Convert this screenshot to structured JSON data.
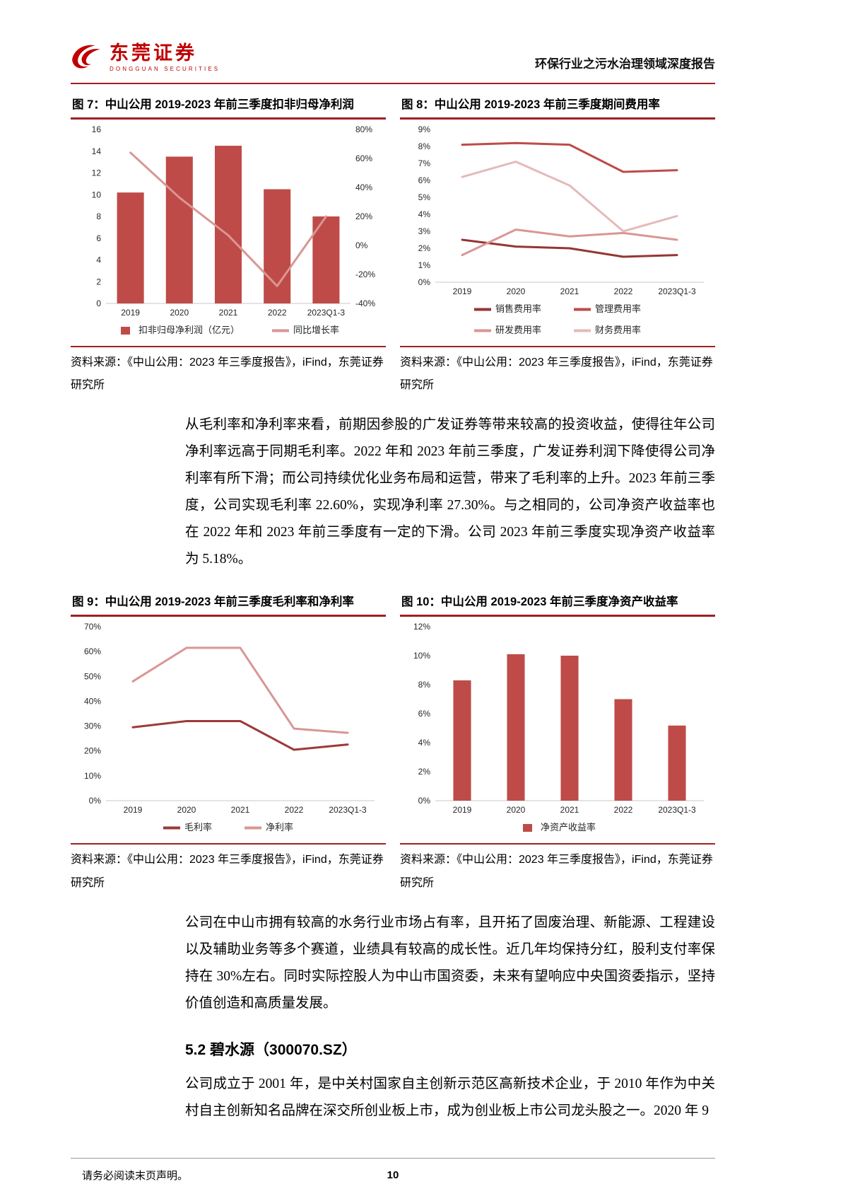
{
  "header": {
    "logo_title": "东莞证券",
    "logo_subtitle": "DONGGUAN SECURITIES",
    "report_title": "环保行业之污水治理领域深度报告"
  },
  "colors": {
    "brand_red": "#C00000",
    "rule_red": "#9E2123",
    "bar_red": "#BE4B48",
    "line_dark_red": "#943634",
    "line_salmon": "#D99694",
    "line_light_pink": "#E5BAB9"
  },
  "figures": [
    {
      "title": "图 7：中山公用 2019-2023 年前三季度扣非归母净利润",
      "source": "资料来源：《中山公用：2023 年三季度报告》，iFind，东莞证券研究所"
    },
    {
      "title": "图 8：中山公用 2019-2023 年前三季度期间费用率",
      "source": "资料来源：《中山公用：2023 年三季度报告》，iFind，东莞证券研究所"
    },
    {
      "title": "图 9：中山公用 2019-2023 年前三季度毛利率和净利率",
      "source": "资料来源：《中山公用：2023 年三季度报告》，iFind，东莞证券研究所"
    },
    {
      "title": "图 10：中山公用 2019-2023 年前三季度净资产收益率",
      "source": "资料来源：《中山公用：2023 年三季度报告》，iFind，东莞证券研究所"
    }
  ],
  "paragraphs": {
    "p1": "从毛利率和净利率来看，前期因参股的广发证券等带来较高的投资收益，使得往年公司净利率远高于同期毛利率。2022 年和 2023 年前三季度，广发证券利润下降使得公司净利率有所下滑；而公司持续优化业务布局和运营，带来了毛利率的上升。2023 年前三季度，公司实现毛利率 22.60%，实现净利率 27.30%。与之相同的，公司净资产收益率也在 2022 年和 2023 年前三季度有一定的下滑。公司 2023 年前三季度实现净资产收益率为 5.18%。",
    "p2": "公司在中山市拥有较高的水务行业市场占有率，且开拓了固废治理、新能源、工程建设以及辅助业务等多个赛道，业绩具有较高的成长性。近几年均保持分红，股利支付率保持在 30%左右。同时实际控股人为中山市国资委，未来有望响应中央国资委指示，坚持价值创造和高质量发展。",
    "p3": "公司成立于 2001 年，是中关村国家自主创新示范区高新技术企业，于 2010 年作为中关村自主创新知名品牌在深交所创业板上市，成为创业板上市公司龙头股之一。2020 年 9"
  },
  "section": {
    "heading": "5.2 碧水源（300070.SZ）"
  },
  "footer": {
    "disclaimer": "请务必阅读末页声明。",
    "page_number": "10"
  },
  "chart_data": [
    {
      "id": "fig7",
      "type": "bar",
      "subtype": "combo-bar-line",
      "title": "图 7：中山公用 2019-2023 年前三季度扣非归母净利润",
      "categories": [
        "2019",
        "2020",
        "2021",
        "2022",
        "2023Q1-3"
      ],
      "series": [
        {
          "name": "扣非归母净利润（亿元）",
          "type": "bar",
          "axis": "left",
          "color": "#BE4B48",
          "values": [
            10.2,
            13.5,
            14.5,
            10.5,
            8.0
          ]
        },
        {
          "name": "同比增长率",
          "type": "line",
          "axis": "right",
          "color": "#D99694",
          "values": [
            64,
            33,
            7,
            -28,
            20
          ]
        }
      ],
      "axes": {
        "left": {
          "min": 0,
          "max": 16,
          "step": 2,
          "suffix": ""
        },
        "right": {
          "min": -40,
          "max": 80,
          "step": 20,
          "suffix": "%"
        }
      },
      "bar_width": 0.55,
      "grid": false,
      "legend_position": "bottom"
    },
    {
      "id": "fig8",
      "type": "line",
      "title": "图 8：中山公用 2019-2023 年前三季度期间费用率",
      "categories": [
        "2019",
        "2020",
        "2021",
        "2022",
        "2023Q1-3"
      ],
      "series": [
        {
          "name": "销售费用率",
          "type": "line",
          "axis": "left",
          "color": "#943634",
          "values": [
            2.5,
            2.1,
            2.0,
            1.5,
            1.6
          ]
        },
        {
          "name": "管理费用率",
          "type": "line",
          "axis": "left",
          "color": "#BE4B48",
          "values": [
            8.1,
            8.2,
            8.1,
            6.5,
            6.6
          ]
        },
        {
          "name": "研发费用率",
          "type": "line",
          "axis": "left",
          "color": "#D99694",
          "values": [
            1.6,
            3.1,
            2.7,
            2.9,
            2.5
          ]
        },
        {
          "name": "财务费用率",
          "type": "line",
          "axis": "left",
          "color": "#E5BAB9",
          "values": [
            6.2,
            7.1,
            5.7,
            3.0,
            3.9
          ]
        }
      ],
      "axes": {
        "left": {
          "min": 0,
          "max": 9,
          "step": 1,
          "suffix": "%"
        }
      },
      "grid": false,
      "legend_position": "bottom"
    },
    {
      "id": "fig9",
      "type": "line",
      "title": "图 9：中山公用 2019-2023 年前三季度毛利率和净利率",
      "categories": [
        "2019",
        "2020",
        "2021",
        "2022",
        "2023Q1-3"
      ],
      "series": [
        {
          "name": "毛利率",
          "type": "line",
          "axis": "left",
          "color": "#9C3A38",
          "values": [
            29.5,
            32.0,
            32.0,
            20.5,
            22.6
          ]
        },
        {
          "name": "净利率",
          "type": "line",
          "axis": "left",
          "color": "#D99694",
          "values": [
            48.0,
            61.5,
            61.5,
            29.0,
            27.3
          ]
        }
      ],
      "axes": {
        "left": {
          "min": 0,
          "max": 70,
          "step": 10,
          "suffix": "%"
        }
      },
      "grid": false,
      "legend_position": "bottom"
    },
    {
      "id": "fig10",
      "type": "bar",
      "title": "图 10：中山公用 2019-2023 年前三季度净资产收益率",
      "categories": [
        "2019",
        "2020",
        "2021",
        "2022",
        "2023Q1-3"
      ],
      "series": [
        {
          "name": "净资产收益率",
          "type": "bar",
          "axis": "left",
          "color": "#BE4B48",
          "values": [
            8.3,
            10.1,
            10.0,
            7.0,
            5.18
          ]
        }
      ],
      "axes": {
        "left": {
          "min": 0,
          "max": 12,
          "step": 2,
          "suffix": "%"
        }
      },
      "bar_width": 0.33,
      "grid": false,
      "legend_position": "bottom"
    }
  ]
}
